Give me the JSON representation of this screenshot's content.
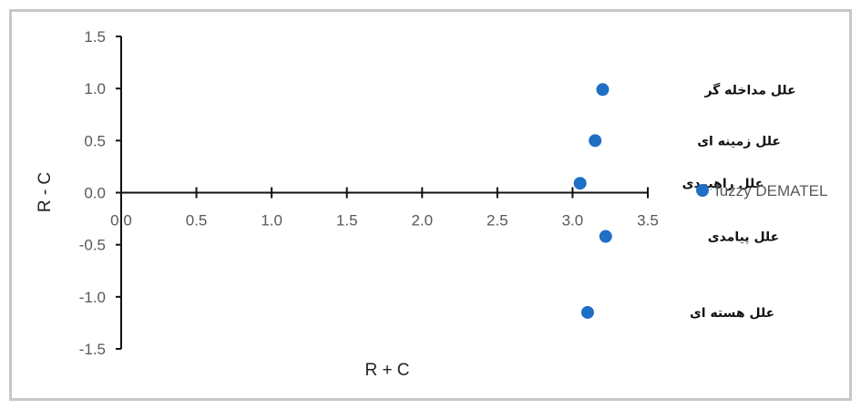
{
  "chart_data": {
    "type": "scatter",
    "title": "",
    "xlabel": "R + C",
    "ylabel": "R - C",
    "xlim": [
      0,
      3.5
    ],
    "ylim": [
      -1.5,
      1.5
    ],
    "x_ticks": [
      "0.0",
      "0.5",
      "1.0",
      "1.5",
      "2.0",
      "2.5",
      "3.0",
      "3.5"
    ],
    "y_ticks": [
      "1.5",
      "1.0",
      "0.5",
      "0.0",
      "-0.5",
      "-1.0",
      "-1.5"
    ],
    "grid": false,
    "legend_position": "right",
    "series": [
      {
        "name": "fuzzy DEMATEL",
        "color": "#1f6fc5",
        "points": [
          {
            "label": "علل مداخله گر",
            "x": 3.2,
            "y": 0.99
          },
          {
            "label": "علل زمینه ای",
            "x": 3.15,
            "y": 0.5
          },
          {
            "label": "علل راهبردی",
            "x": 3.05,
            "y": 0.09
          },
          {
            "label": "علل پیامدی",
            "x": 3.22,
            "y": -0.42
          },
          {
            "label": "علل هسته ای",
            "x": 3.1,
            "y": -1.15
          }
        ]
      }
    ]
  }
}
